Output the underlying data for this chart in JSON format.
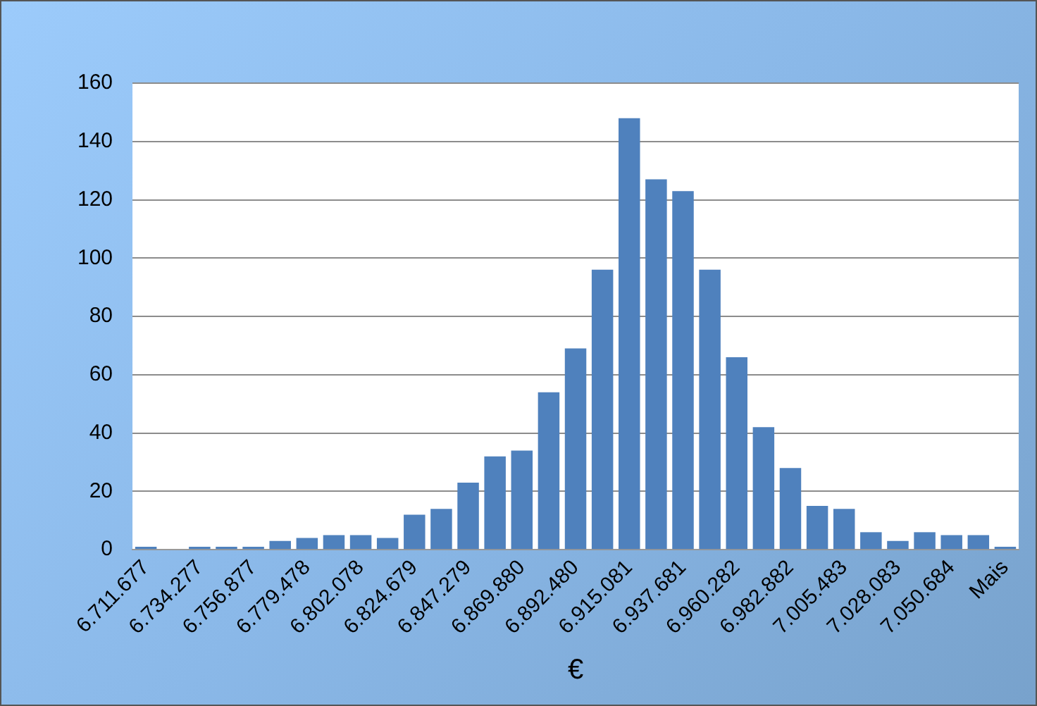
{
  "chart_data": {
    "type": "bar",
    "categories": [
      "6.711.677",
      null,
      "6.734.277",
      null,
      "6.756.877",
      null,
      "6.779.478",
      null,
      "6.802.078",
      null,
      "6.824.679",
      null,
      "6.847.279",
      null,
      "6.869.880",
      null,
      "6.892.480",
      null,
      "6.915.081",
      null,
      "6.937.681",
      null,
      "6.960.282",
      null,
      "6.982.882",
      null,
      "7.005.483",
      null,
      "7.028.083",
      null,
      "7.050.684",
      null,
      "Mais"
    ],
    "values": [
      1,
      0,
      1,
      1,
      1,
      3,
      4,
      5,
      5,
      4,
      12,
      14,
      23,
      32,
      34,
      54,
      69,
      96,
      148,
      127,
      123,
      96,
      66,
      42,
      28,
      15,
      14,
      6,
      3,
      6,
      5,
      5,
      1
    ],
    "color": "#4f81bd",
    "xlabel": "€",
    "ylim": [
      0,
      160
    ],
    "yticks": [
      0,
      20,
      40,
      60,
      80,
      100,
      120,
      140,
      160
    ],
    "grid": "y",
    "legend": false
  }
}
